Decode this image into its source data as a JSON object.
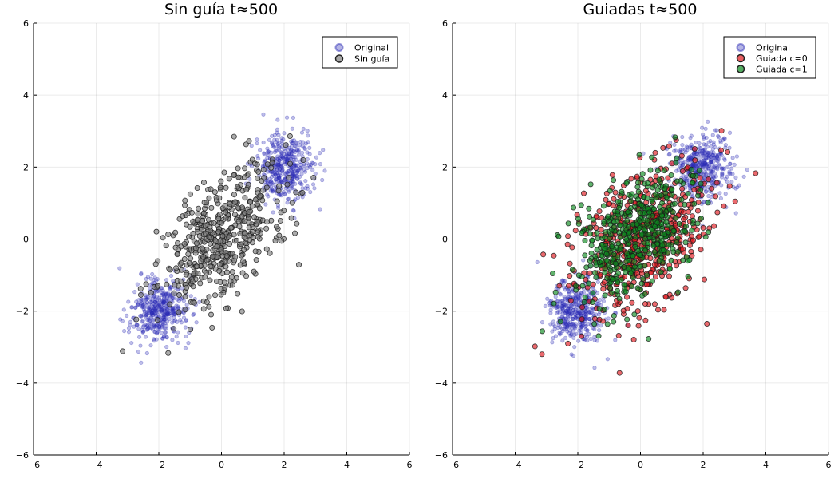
{
  "chart_data": [
    {
      "type": "scatter",
      "title": "Sin guía   t≈500",
      "xlim": [
        -6,
        6
      ],
      "ylim": [
        -6,
        6
      ],
      "xticks": [
        -6,
        -4,
        -2,
        0,
        2,
        4,
        6
      ],
      "yticks": [
        -6,
        -4,
        -2,
        0,
        2,
        4,
        6
      ],
      "x_tick_labels": [
        "−6",
        "−4",
        "−2",
        "0",
        "2",
        "4",
        "6"
      ],
      "y_tick_labels": [
        "−6",
        "−4",
        "−2",
        "0",
        "2",
        "4",
        "6"
      ],
      "grid": true,
      "legend_position": "top-right",
      "series": [
        {
          "name": "Original",
          "color": "#2b2bb5",
          "marker": "small-circle",
          "distribution": {
            "clusters": [
              {
                "center": [
                  -2.0,
                  -2.0
                ],
                "std": 0.45,
                "n": 420
              },
              {
                "center": [
                  2.0,
                  2.0
                ],
                "std": 0.45,
                "n": 420
              }
            ]
          }
        },
        {
          "name": "Sin guía",
          "color": "#808080",
          "marker": "circle",
          "distribution": {
            "clusters": [
              {
                "center": [
                  0.0,
                  0.0
                ],
                "std": 1.05,
                "n": 500,
                "correlation": 0.55
              }
            ]
          }
        }
      ]
    },
    {
      "type": "scatter",
      "title": "Guiadas   t≈500",
      "xlim": [
        -6,
        6
      ],
      "ylim": [
        -6,
        6
      ],
      "xticks": [
        -6,
        -4,
        -2,
        0,
        2,
        4,
        6
      ],
      "yticks": [
        -6,
        -4,
        -2,
        0,
        2,
        4,
        6
      ],
      "x_tick_labels": [
        "−6",
        "−4",
        "−2",
        "0",
        "2",
        "4",
        "6"
      ],
      "y_tick_labels": [
        "−6",
        "−4",
        "−2",
        "0",
        "2",
        "4",
        "6"
      ],
      "grid": true,
      "legend_position": "top-right",
      "series": [
        {
          "name": "Original",
          "color": "#2b2bb5",
          "marker": "small-circle",
          "distribution": {
            "clusters": [
              {
                "center": [
                  -2.0,
                  -2.0
                ],
                "std": 0.45,
                "n": 420
              },
              {
                "center": [
                  2.0,
                  2.0
                ],
                "std": 0.45,
                "n": 420
              }
            ]
          }
        },
        {
          "name": "Guiada c=0",
          "color": "#e0191e",
          "marker": "circle",
          "distribution": {
            "clusters": [
              {
                "center": [
                  0.1,
                  -0.1
                ],
                "std": 1.1,
                "n": 500,
                "correlation": 0.45
              }
            ]
          }
        },
        {
          "name": "Guiada c=1",
          "color": "#0c8a1e",
          "marker": "circle",
          "distribution": {
            "clusters": [
              {
                "center": [
                  -0.1,
                  0.1
                ],
                "std": 0.95,
                "n": 500,
                "correlation": 0.5
              }
            ]
          }
        }
      ]
    }
  ]
}
